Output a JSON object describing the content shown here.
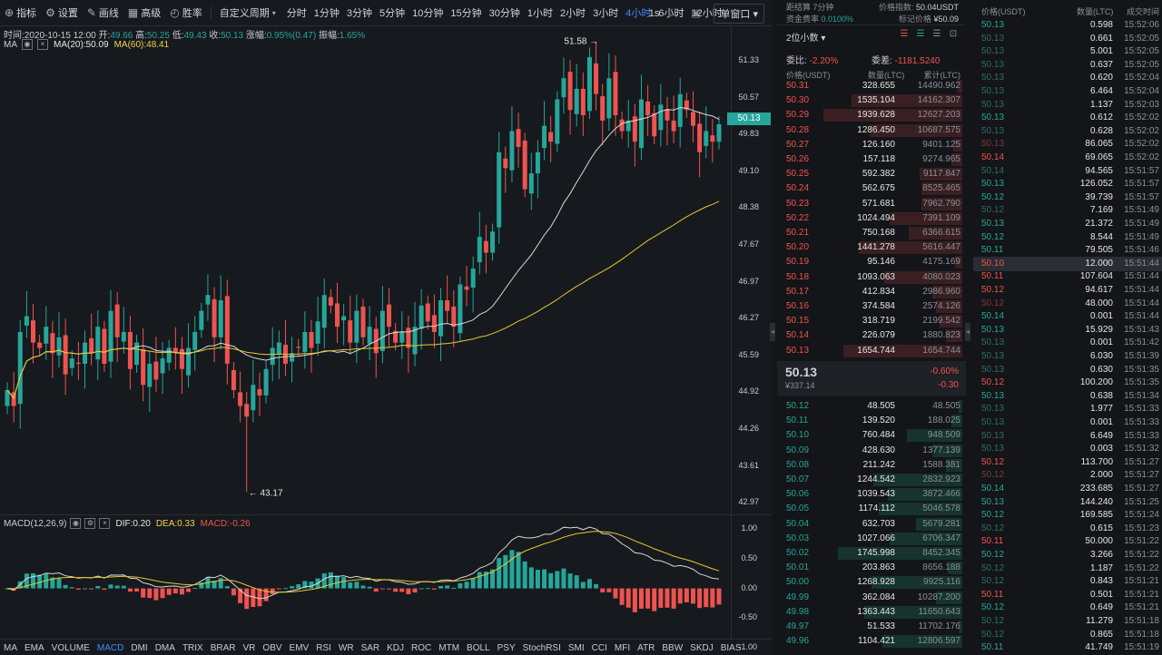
{
  "toolbar": {
    "items": [
      {
        "label": "指标",
        "icon": "indicator-icon"
      },
      {
        "label": "设置",
        "icon": "gear-icon"
      },
      {
        "label": "画线",
        "icon": "pencil-icon"
      },
      {
        "label": "高级",
        "icon": "chart-advanced-icon"
      },
      {
        "label": "胜率",
        "icon": "winrate-icon"
      }
    ],
    "custom_period": "自定义周期",
    "periods": [
      "分时",
      "1分钟",
      "3分钟",
      "5分钟",
      "10分钟",
      "15分钟",
      "30分钟",
      "1小时",
      "2小时",
      "3小时",
      "4小时",
      "6小时",
      "12小时"
    ],
    "active_period": "4小时",
    "interval": "1s",
    "window_mode": "单窗口"
  },
  "chart_info": {
    "time_label": "时间:",
    "time": "2020-10-15 12:00",
    "open_label": "开:",
    "open": "49.66",
    "high_label": "高:",
    "high": "50.25",
    "low_label": "低:",
    "low": "49.43",
    "close_label": "收:",
    "close": "50.13",
    "change_label": "涨幅:",
    "change": "0.95%(0.47)",
    "amp_label": "振幅:",
    "amplitude": "1.65%",
    "legend_ma": "MA",
    "ma20": "MA(20):50.09",
    "ma60": "MA(60):48.41"
  },
  "macd_info": {
    "label": "MACD(12,26,9)",
    "dif": "DIF:0.20",
    "dea": "DEA:0.33",
    "macd": "MACD:-0.26"
  },
  "colors": {
    "up": "#26a69a",
    "down": "#ef5350",
    "ma20": "#d9d9d9",
    "ma60": "#e6c82e",
    "accent": "#3f8cff"
  },
  "chart_data": {
    "type": "candlestick",
    "price_axis": [
      "51.33",
      "50.57",
      "49.83",
      "49.10",
      "48.38",
      "47.67",
      "46.97",
      "46.27",
      "45.59",
      "44.92",
      "44.26",
      "43.61",
      "42.97"
    ],
    "macd_axis": [
      "1.00",
      "0.50",
      "0.00",
      "-0.50",
      "-1.00"
    ],
    "current_price": "50.13",
    "max_label": "51.58",
    "min_label": "43.17",
    "ylim": [
      42.97,
      51.9
    ],
    "close": [
      45.1,
      44.8,
      46.2,
      46.5,
      46.0,
      45.9,
      46.3,
      45.8,
      46.1,
      45.4,
      45.7,
      45.6,
      46.0,
      45.8,
      46.3,
      45.6,
      46.6,
      46.1,
      46.2,
      45.5,
      46.0,
      45.2,
      45.6,
      45.3,
      45.7,
      45.9,
      45.8,
      45.5,
      45.9,
      46.2,
      46.6,
      46.9,
      46.1,
      46.8,
      45.6,
      45.1,
      44.8,
      44.6,
      45.2,
      45.0,
      45.5,
      45.9,
      46.0,
      45.6,
      45.8,
      45.9,
      46.2,
      45.9,
      46.4,
      46.9,
      46.7,
      46.3,
      46.5,
      46.0,
      46.6,
      46.1,
      46.3,
      45.8,
      46.6,
      46.3,
      46.0,
      46.2,
      45.9,
      46.3,
      46.7,
      46.4,
      46.2,
      46.8,
      46.6,
      46.3,
      47.1,
      47.0,
      47.4,
      48.0,
      47.7,
      48.1,
      49.6,
      49.3,
      50.0,
      49.7,
      48.9,
      49.2,
      49.6,
      50.1,
      49.8,
      50.6,
      51.0,
      50.4,
      50.8,
      50.3,
      51.4,
      50.7,
      50.2,
      51.0,
      50.3,
      50.0,
      50.2,
      49.8,
      50.6,
      50.3,
      49.9,
      50.5,
      50.2,
      50.0,
      50.7,
      50.4,
      50.1,
      49.6,
      50.0,
      49.8,
      50.13
    ]
  },
  "indicators": [
    "MA",
    "EMA",
    "VOLUME",
    "MACD",
    "DMI",
    "DMA",
    "TRIX",
    "BRAR",
    "VR",
    "OBV",
    "EMV",
    "RSI",
    "WR",
    "SAR",
    "KDJ",
    "ROC",
    "MTM",
    "BOLL",
    "PSY",
    "StochRSI",
    "SMI",
    "CCI",
    "MFI",
    "ATR",
    "BBW",
    "SKDJ",
    "BIAS"
  ],
  "active_indicator": "MACD",
  "orderbook": {
    "countdown_label": "距结算",
    "countdown": "7分钟",
    "funding_label": "资金费率",
    "funding": "0.0100%",
    "index_label": "价格指数",
    "index": "50.04USDT",
    "mark_label": "标记价格",
    "mark": "¥50.09",
    "decimals": "2位小数",
    "ratio_label": "委比:",
    "ratio": "-2.20%",
    "diff_label": "委差:",
    "diff": "-1181.5240",
    "headers": [
      "价格(USDT)",
      "数量(LTC)",
      "累计(LTC)"
    ],
    "asks": [
      [
        "50.31",
        "328.655",
        "14490.962",
        0.03
      ],
      [
        "50.30",
        "1535.104",
        "14162.307",
        0.62
      ],
      [
        "50.29",
        "1939.628",
        "12627.203",
        0.78
      ],
      [
        "50.28",
        "1286.450",
        "10687.575",
        0.52
      ],
      [
        "50.27",
        "126.160",
        "9401.125",
        0.05
      ],
      [
        "50.26",
        "157.118",
        "9274.965",
        0.06
      ],
      [
        "50.25",
        "592.382",
        "9117.847",
        0.24
      ],
      [
        "50.24",
        "562.675",
        "8525.465",
        0.23
      ],
      [
        "50.23",
        "571.681",
        "7962.790",
        0.23
      ],
      [
        "50.22",
        "1024.494",
        "7391.109",
        0.41
      ],
      [
        "50.21",
        "750.168",
        "6366.615",
        0.3
      ],
      [
        "50.20",
        "1441.278",
        "5616.447",
        0.58
      ],
      [
        "50.19",
        "95.146",
        "4175.169",
        0.04
      ],
      [
        "50.18",
        "1093.063",
        "4080.023",
        0.44
      ],
      [
        "50.17",
        "412.834",
        "2986.960",
        0.17
      ],
      [
        "50.16",
        "374.584",
        "2574.126",
        0.15
      ],
      [
        "50.15",
        "318.719",
        "2199.542",
        0.13
      ],
      [
        "50.14",
        "226.079",
        "1880.823",
        0.09
      ],
      [
        "50.13",
        "1654.744",
        "1654.744",
        0.67
      ]
    ],
    "mid_price": "50.13",
    "mid_pct": "-0.60%",
    "mid_cny": "¥337.14",
    "mid_change": "-0.30",
    "bids": [
      [
        "50.12",
        "48.505",
        "48.505",
        0.02
      ],
      [
        "50.11",
        "139.520",
        "188.025",
        0.06
      ],
      [
        "50.10",
        "760.484",
        "948.509",
        0.31
      ],
      [
        "50.09",
        "428.630",
        "1377.139",
        0.17
      ],
      [
        "50.08",
        "211.242",
        "1588.381",
        0.09
      ],
      [
        "50.07",
        "1244.542",
        "2832.923",
        0.5
      ],
      [
        "50.06",
        "1039.543",
        "3872.466",
        0.42
      ],
      [
        "50.05",
        "1174.112",
        "5046.578",
        0.47
      ],
      [
        "50.04",
        "632.703",
        "5679.281",
        0.26
      ],
      [
        "50.03",
        "1027.066",
        "6706.347",
        0.41
      ],
      [
        "50.02",
        "1745.998",
        "8452.345",
        0.7
      ],
      [
        "50.01",
        "203.863",
        "8656.188",
        0.08
      ],
      [
        "50.00",
        "1268.928",
        "9925.116",
        0.51
      ],
      [
        "49.99",
        "362.084",
        "10287.200",
        0.15
      ],
      [
        "49.98",
        "1363.443",
        "11650.643",
        0.55
      ],
      [
        "49.97",
        "51.533",
        "11702.176",
        0.02
      ],
      [
        "49.96",
        "1104.421",
        "12806.597",
        0.45
      ]
    ]
  },
  "trades": {
    "headers": [
      "价格(USDT)",
      "数量(LTC)",
      "成交时间"
    ],
    "rows": [
      [
        "50.13",
        "0.598",
        "15:52:06",
        "g"
      ],
      [
        "50.13",
        "0.661",
        "15:52:05",
        "gd"
      ],
      [
        "50.13",
        "5.001",
        "15:52:05",
        "gd"
      ],
      [
        "50.13",
        "0.637",
        "15:52:05",
        "gd"
      ],
      [
        "50.13",
        "0.620",
        "15:52:04",
        "gd"
      ],
      [
        "50.13",
        "6.464",
        "15:52:04",
        "gd"
      ],
      [
        "50.13",
        "1.137",
        "15:52:03",
        "gd"
      ],
      [
        "50.13",
        "0.612",
        "15:52:02",
        "g"
      ],
      [
        "50.13",
        "0.628",
        "15:52:02",
        "gd"
      ],
      [
        "50.13",
        "86.065",
        "15:52:02",
        "rd"
      ],
      [
        "50.14",
        "69.065",
        "15:52:02",
        "r"
      ],
      [
        "50.14",
        "94.565",
        "15:51:57",
        "gd"
      ],
      [
        "50.13",
        "126.052",
        "15:51:57",
        "g"
      ],
      [
        "50.12",
        "39.739",
        "15:51:57",
        "g"
      ],
      [
        "50.12",
        "7.169",
        "15:51:49",
        "gd"
      ],
      [
        "50.13",
        "21.372",
        "15:51:49",
        "g"
      ],
      [
        "50.12",
        "8.544",
        "15:51:49",
        "g"
      ],
      [
        "50.11",
        "79.505",
        "15:51:46",
        "g"
      ],
      [
        "50.10",
        "12.000",
        "15:51:44",
        "r",
        true
      ],
      [
        "50.11",
        "107.604",
        "15:51:44",
        "r"
      ],
      [
        "50.12",
        "94.617",
        "15:51:44",
        "r"
      ],
      [
        "50.12",
        "48.000",
        "15:51:44",
        "rd"
      ],
      [
        "50.14",
        "0.001",
        "15:51:44",
        "g"
      ],
      [
        "50.13",
        "15.929",
        "15:51:43",
        "g"
      ],
      [
        "50.13",
        "0.001",
        "15:51:42",
        "gd"
      ],
      [
        "50.13",
        "6.030",
        "15:51:39",
        "gd"
      ],
      [
        "50.13",
        "0.630",
        "15:51:35",
        "gd"
      ],
      [
        "50.12",
        "100.200",
        "15:51:35",
        "r"
      ],
      [
        "50.13",
        "0.638",
        "15:51:34",
        "g"
      ],
      [
        "50.13",
        "1.977",
        "15:51:33",
        "gd"
      ],
      [
        "50.13",
        "0.001",
        "15:51:33",
        "gd"
      ],
      [
        "50.13",
        "6.649",
        "15:51:33",
        "gd"
      ],
      [
        "50.13",
        "0.003",
        "15:51:32",
        "gd"
      ],
      [
        "50.12",
        "113.700",
        "15:51:27",
        "r"
      ],
      [
        "50.12",
        "2.000",
        "15:51:27",
        "rd"
      ],
      [
        "50.14",
        "233.685",
        "15:51:27",
        "g"
      ],
      [
        "50.13",
        "144.240",
        "15:51:25",
        "g"
      ],
      [
        "50.12",
        "169.585",
        "15:51:24",
        "g"
      ],
      [
        "50.12",
        "0.615",
        "15:51:23",
        "gd"
      ],
      [
        "50.11",
        "50.000",
        "15:51:22",
        "r"
      ],
      [
        "50.12",
        "3.266",
        "15:51:22",
        "g"
      ],
      [
        "50.12",
        "1.187",
        "15:51:22",
        "gd"
      ],
      [
        "50.12",
        "0.843",
        "15:51:21",
        "gd"
      ],
      [
        "50.11",
        "0.501",
        "15:51:21",
        "r"
      ],
      [
        "50.12",
        "0.649",
        "15:51:21",
        "g"
      ],
      [
        "50.12",
        "11.279",
        "15:51:18",
        "gd"
      ],
      [
        "50.12",
        "0.865",
        "15:51:18",
        "gd"
      ],
      [
        "50.11",
        "41.749",
        "15:51:19",
        "g"
      ]
    ]
  }
}
